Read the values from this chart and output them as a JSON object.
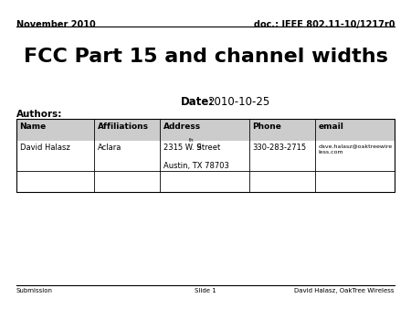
{
  "title": "FCC Part 15 and channel widths",
  "date_label": "Date:",
  "date_value": "2010-10-25",
  "authors_label": "Authors:",
  "header_left": "November 2010",
  "header_right": "doc.: IEEE 802.11-10/1217r0",
  "footer_left": "Submission",
  "footer_center": "Slide 1",
  "footer_right": "David Halasz, OakTree Wireless",
  "table_headers": [
    "Name",
    "Affiliations",
    "Address",
    "Phone",
    "email"
  ],
  "bg_color": "#ffffff",
  "text_color": "#000000",
  "table_header_bg": "#cccccc"
}
